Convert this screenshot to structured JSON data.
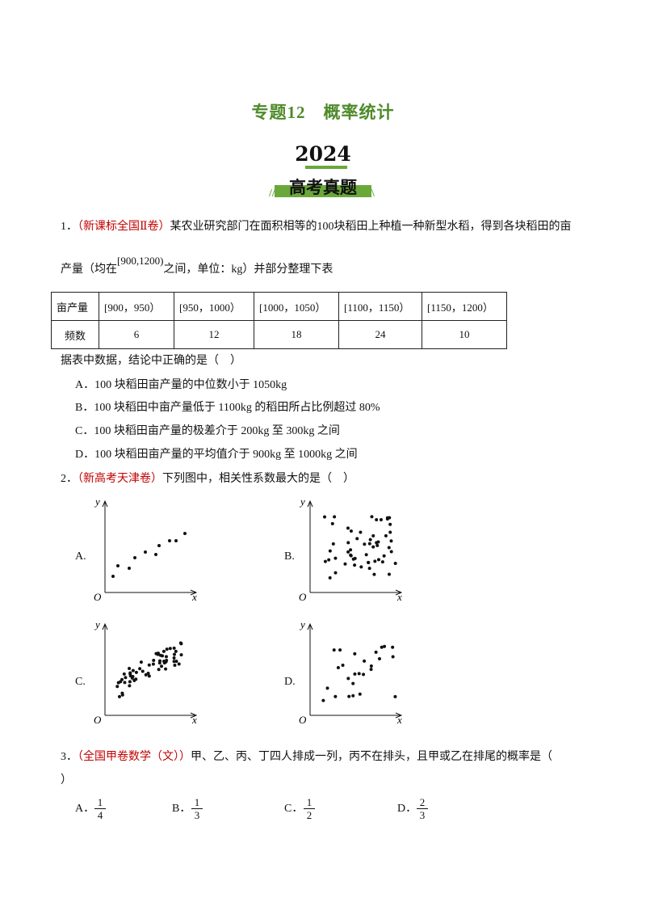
{
  "header": {
    "title": "专题12　概率统计",
    "year": "2024",
    "badge": "高考真题"
  },
  "questions": [
    {
      "number": "1．",
      "source": "（新课标全国Ⅱ卷）",
      "text": "某农业研究部门在面积相等的100块稻田上种植一种新型水稻，得到各块稻田的亩",
      "text2_before": "产量（均在",
      "interval": "[900,1200)",
      "text2_after": "之间，单位：kg）并部分整理下表",
      "table": {
        "rows": [
          [
            "亩产量",
            "[900，950）",
            "[950，1000）",
            "[1000，1050）",
            "[1100，1150）",
            "[1150，1200）"
          ],
          [
            "频数",
            6,
            12,
            18,
            24,
            10
          ]
        ]
      },
      "stem": "据表中数据，结论中正确的是（　）",
      "options": [
        "A．100 块稻田亩产量的中位数小于 1050kg",
        "B．100 块稻田中亩产量低于 1100kg 的稻田所占比例超过 80%",
        "C．100 块稻田亩产量的极差介于 200kg 至 300kg 之间",
        "D．100 块稻田亩产量的平均值介于 900kg 至 1000kg 之间"
      ]
    },
    {
      "number": "2．",
      "source": "（新高考天津卷）",
      "text": "下列图中，相关性系数最大的是（　）",
      "axis": {
        "x": "x",
        "y": "y",
        "origin": "O"
      },
      "plots": [
        "A.",
        "B.",
        "C.",
        "D."
      ]
    },
    {
      "number": "3．",
      "source": "（全国甲卷数学（文））",
      "text": "甲、乙、丙、丁四人排成一列，丙不在排头，且甲或乙在排尾的概率是（",
      "text_end": "）",
      "options": [
        {
          "letter": "A．",
          "numerator": 1,
          "denominator": 4
        },
        {
          "letter": "B．",
          "numerator": 1,
          "denominator": 3
        },
        {
          "letter": "C．",
          "numerator": 1,
          "denominator": 2
        },
        {
          "letter": "D．",
          "numerator": 2,
          "denominator": 3
        }
      ]
    }
  ]
}
